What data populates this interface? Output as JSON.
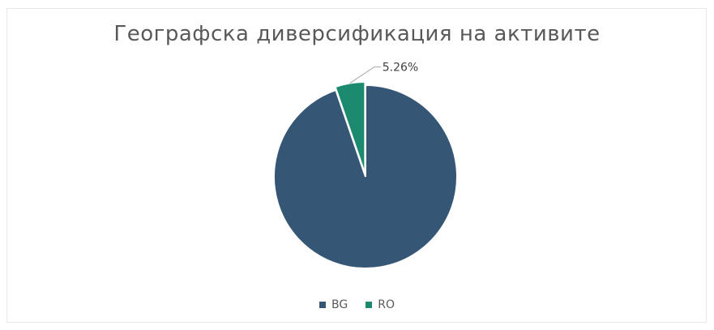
{
  "chart_data": {
    "type": "pie",
    "title": "Географска диверсификация на активите",
    "categories": [
      "BG",
      "RO"
    ],
    "values": [
      94.74,
      5.26
    ],
    "colors": [
      "#355675",
      "#1b8a6e"
    ],
    "data_labels": [
      "",
      "5.26%"
    ],
    "legend_position": "bottom",
    "start_angle_deg": 0,
    "exploded_slice": "RO"
  }
}
